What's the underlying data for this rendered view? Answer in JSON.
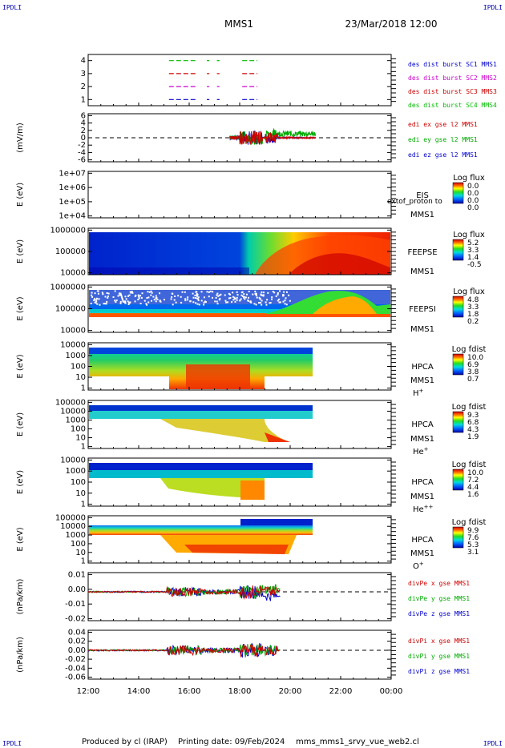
{
  "corner_label": "IPDLI",
  "header": {
    "spacecraft": "MMS1",
    "datetime": "23/Mar/2018 12:00"
  },
  "footer": {
    "produced_by": "Produced by cl (IRAP)",
    "printing_date": "Printing date: 09/Feb/2024",
    "filename": "mms_mms1_srvy_vue_web2.cl"
  },
  "chart_data": {
    "type": "multi-panel time series",
    "x_ticks": [
      "12:00",
      "14:00",
      "16:00",
      "18:00",
      "20:00",
      "22:00",
      "00:00"
    ],
    "x_range_hours": [
      12,
      24
    ],
    "panels": [
      {
        "id": "burst",
        "type": "line",
        "ylabel": "",
        "yticks": [
          "1",
          "2",
          "3",
          "4"
        ],
        "legend": [
          {
            "text": "des dist burst SC1 MMS1",
            "color": "#0000cc"
          },
          {
            "text": "des dist burst SC2 MMS2",
            "color": "#cc00cc"
          },
          {
            "text": "des dist burst SC3 MMS3",
            "color": "#cc0000"
          },
          {
            "text": "des dist burst SC4 MMS4",
            "color": "#00bb00"
          }
        ],
        "intervals_hours": [
          [
            15.2,
            16.3
          ],
          [
            16.7,
            16.8
          ],
          [
            17.1,
            17.2
          ],
          [
            18.1,
            18.7
          ]
        ]
      },
      {
        "id": "edi",
        "type": "line",
        "ylabel": "(mV/m)",
        "yticks": [
          "6",
          "4",
          "2",
          "0",
          "-2",
          "-4",
          "-6"
        ],
        "ylim": [
          -6.5,
          6.5
        ],
        "legend": [
          {
            "text": "edi ex gse l2 MMS1",
            "color": "#cc0000"
          },
          {
            "text": "edi ey gse l2 MMS1",
            "color": "#00aa00"
          },
          {
            "text": "edi ez gse l2 MMS1",
            "color": "#0000cc"
          }
        ],
        "data_range_hours": [
          17.6,
          21.0
        ]
      },
      {
        "id": "eis",
        "type": "heatmap",
        "ylabel": "E (eV)",
        "yticks": [
          "1e+07",
          "1e+06",
          "1e+05",
          "1e+04"
        ],
        "label": [
          "EIS",
          "MMS1"
        ],
        "overlay_text": "extof_proton to",
        "cbar_title": "Log flux",
        "cbar_ticks": [
          "0.0",
          "0.0",
          "0.0",
          "0.0"
        ]
      },
      {
        "id": "feepse",
        "type": "heatmap",
        "ylabel": "E (eV)",
        "yticks": [
          "1000000",
          "100000",
          "10000"
        ],
        "label": [
          "FEEPSE",
          "MMS1"
        ],
        "cbar_title": "Log flux",
        "cbar_ticks": [
          "5.2",
          "3.3",
          "1.4",
          "-0.5"
        ]
      },
      {
        "id": "feepsi",
        "type": "heatmap",
        "ylabel": "E (eV)",
        "yticks": [
          "1000000",
          "100000",
          "10000"
        ],
        "label": [
          "FEEPSI",
          "MMS1"
        ],
        "cbar_title": "Log flux",
        "cbar_ticks": [
          "4.8",
          "3.3",
          "1.8",
          "0.2"
        ]
      },
      {
        "id": "hpca_h",
        "type": "heatmap",
        "ylabel": "E (eV)",
        "yticks": [
          "10000",
          "1000",
          "100",
          "10",
          "1"
        ],
        "label": [
          "HPCA",
          "MMS1"
        ],
        "species": "H",
        "species_sup": "+",
        "cbar_title": "Log fdist",
        "cbar_ticks": [
          "10.0",
          "6.9",
          "3.8",
          "0.7"
        ]
      },
      {
        "id": "hpca_he",
        "type": "heatmap",
        "ylabel": "E (eV)",
        "yticks": [
          "100000",
          "10000",
          "1000",
          "100",
          "10",
          "1"
        ],
        "label": [
          "HPCA",
          "MMS1"
        ],
        "species": "He",
        "species_sup": "+",
        "cbar_title": "Log fdist",
        "cbar_ticks": [
          "9.3",
          "6.8",
          "4.3",
          "1.9"
        ]
      },
      {
        "id": "hpca_hepp",
        "type": "heatmap",
        "ylabel": "E (eV)",
        "yticks": [
          "10000",
          "1000",
          "100",
          "10",
          "1"
        ],
        "label": [
          "HPCA",
          "MMS1"
        ],
        "species": "He",
        "species_sup": "++",
        "cbar_title": "Log fdist",
        "cbar_ticks": [
          "10.0",
          "7.2",
          "4.4",
          "1.6"
        ]
      },
      {
        "id": "hpca_o",
        "type": "heatmap",
        "ylabel": "E (eV)",
        "yticks": [
          "100000",
          "10000",
          "1000",
          "100",
          "10",
          "1"
        ],
        "label": [
          "HPCA",
          "MMS1"
        ],
        "species": "O",
        "species_sup": "+",
        "cbar_title": "Log fdist",
        "cbar_ticks": [
          "9.9",
          "7.6",
          "5.3",
          "3.1"
        ]
      },
      {
        "id": "divpe",
        "type": "line",
        "ylabel": "(nPa/km)",
        "yticks": [
          "0.01",
          "0.00",
          "-0.01",
          "-0.02"
        ],
        "ylim": [
          -0.021,
          0.014
        ],
        "legend": [
          {
            "text": "divPe x gse MMS1",
            "color": "#cc0000"
          },
          {
            "text": "divPe y gse MMS1",
            "color": "#00aa00"
          },
          {
            "text": "divPe z gse MMS1",
            "color": "#0000cc"
          }
        ],
        "data_range_hours": [
          12.0,
          19.6
        ]
      },
      {
        "id": "divpi",
        "type": "line",
        "ylabel": "(nPa/km)",
        "yticks": [
          "0.04",
          "0.02",
          "0.00",
          "-0.02",
          "-0.04",
          "-0.06"
        ],
        "ylim": [
          -0.062,
          0.043
        ],
        "legend": [
          {
            "text": "divPi x gse MMS1",
            "color": "#cc0000"
          },
          {
            "text": "divPi y gse MMS1",
            "color": "#00aa00"
          },
          {
            "text": "divPi z gse MMS1",
            "color": "#0000cc"
          }
        ],
        "data_range_hours": [
          12.0,
          19.6
        ]
      }
    ]
  }
}
